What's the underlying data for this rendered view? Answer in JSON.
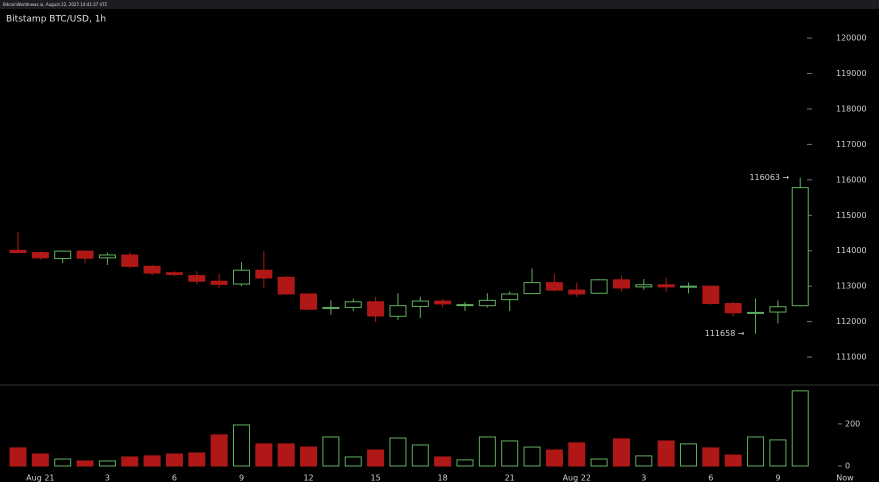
{
  "header": {
    "text": "BitcoinWorldnews.io, August 22, 2025 14:41:37 UTC"
  },
  "chart_data": {
    "type": "candlestick",
    "title": "Bitstamp BTC/USD, 1h",
    "categories": [
      null,
      "Aug 21",
      null,
      null,
      "3",
      null,
      null,
      "6",
      null,
      null,
      "9",
      null,
      null,
      "12",
      null,
      null,
      "15",
      null,
      null,
      "18",
      null,
      null,
      "21",
      null,
      null,
      "Aug 22",
      null,
      null,
      "3",
      null,
      null,
      "6",
      null,
      null,
      "9",
      null
    ],
    "end_label": "Now",
    "open": [
      114010,
      113950,
      113780,
      113990,
      113800,
      113880,
      113560,
      113380,
      113300,
      113140,
      113060,
      113450,
      113250,
      112780,
      112370,
      112400,
      112560,
      112150,
      112430,
      112580,
      112460,
      112450,
      112620,
      112790,
      113100,
      112890,
      112800,
      113180,
      112980,
      113040,
      112980,
      113000,
      112510,
      112240,
      112270,
      112450
    ],
    "high": [
      114520,
      113980,
      114000,
      114000,
      113950,
      113950,
      113600,
      113420,
      113420,
      113350,
      113680,
      113990,
      113300,
      112800,
      112600,
      112650,
      112700,
      112800,
      112700,
      112650,
      112550,
      112800,
      112850,
      113500,
      113350,
      113100,
      113200,
      113300,
      113200,
      113250,
      113100,
      113020,
      112550,
      112650,
      112600,
      116063
    ],
    "low": [
      113930,
      113750,
      113650,
      113650,
      113600,
      113500,
      113300,
      113280,
      113050,
      112950,
      113000,
      112950,
      112750,
      112330,
      112200,
      112300,
      111990,
      112050,
      112100,
      112400,
      112300,
      112400,
      112300,
      112780,
      112850,
      112700,
      112780,
      112850,
      112900,
      112850,
      112800,
      112480,
      112150,
      111658,
      111950,
      112430
    ],
    "close": [
      113950,
      113800,
      113990,
      113790,
      113880,
      113560,
      113370,
      113330,
      113140,
      113050,
      113450,
      113230,
      112780,
      112350,
      112400,
      112560,
      112160,
      112450,
      112580,
      112500,
      112480,
      112600,
      112780,
      113100,
      112890,
      112780,
      113180,
      112950,
      113040,
      112980,
      113000,
      112510,
      112250,
      112260,
      112420,
      115780
    ],
    "volume": [
      86,
      57,
      33,
      24,
      24,
      43,
      48,
      57,
      62,
      148,
      195,
      105,
      105,
      90,
      138,
      43,
      76,
      133,
      100,
      43,
      29,
      138,
      119,
      90,
      76,
      110,
      33,
      129,
      48,
      119,
      105,
      86,
      52,
      138,
      124,
      357
    ],
    "ylim": [
      110240,
      120510
    ],
    "yticks": [
      111000,
      112000,
      113000,
      114000,
      115000,
      116000,
      117000,
      118000,
      119000,
      120000
    ],
    "volume_ylim": [
      0,
      380
    ],
    "volume_yticks": [
      0,
      200
    ],
    "annotations": [
      {
        "value": 116063,
        "label": "116063 →"
      },
      {
        "value": 111658,
        "label": "111658 →"
      }
    ],
    "up_color": "#5fae5f",
    "down_color": "#b01818"
  }
}
